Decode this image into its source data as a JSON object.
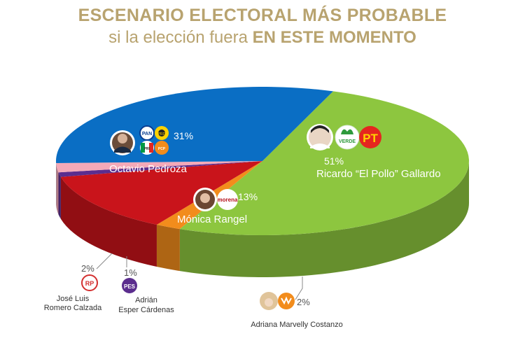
{
  "header": {
    "title_line1": "ESCENARIO ELECTORAL MÁS PROBABLE",
    "title_line2_plain": "si la elección fuera",
    "title_line2_bold": "EN ESTE MOMENTO"
  },
  "chart_data": {
    "type": "pie",
    "style": "3d",
    "slices": [
      {
        "candidate": "Ricardo “El Pollo” Gallardo",
        "value": 51,
        "label": "51%",
        "color": "#8dc63f",
        "parties": [
          "VERDE",
          "PT"
        ]
      },
      {
        "candidate": "Adriana Marvelly Costanzo",
        "value": 2,
        "label": "2%",
        "color": "#f28c1c",
        "parties": [
          "MC"
        ]
      },
      {
        "candidate": "Mónica Rangel",
        "value": 13,
        "label": "13%",
        "color": "#c9141b",
        "parties": [
          "morena"
        ]
      },
      {
        "candidate": "Adrián Esper Cárdenas",
        "value": 1,
        "label": "1%",
        "color": "#5b2d8e",
        "parties": [
          "PES"
        ]
      },
      {
        "candidate": "José Luis Romero Calzada",
        "value": 2,
        "label": "2%",
        "color": "#f4a9b8",
        "parties": [
          "RP"
        ]
      },
      {
        "candidate": "Octavio Pedroza",
        "value": 31,
        "label": "31%",
        "color": "#0a6ec4",
        "parties": [
          "PAN",
          "PRD",
          "PRI",
          "PCP"
        ]
      }
    ],
    "labels": {
      "gallardo": {
        "pct": "51%",
        "name": "Ricardo “El Pollo” Gallardo"
      },
      "pedroza": {
        "pct": "31%",
        "name": "Octavio Pedroza"
      },
      "rangel": {
        "pct": "13%",
        "name": "Mónica Rangel"
      },
      "romero": {
        "pct": "2%",
        "name_line1": "José Luis",
        "name_line2": "Romero Calzada"
      },
      "esper": {
        "pct": "1%",
        "name_line1": "Adrián",
        "name_line2": "Esper Cárdenas"
      },
      "costanzo": {
        "pct": "2%",
        "name": "Adriana Marvelly Costanzo"
      }
    }
  },
  "logos": {
    "pan": "PAN",
    "prd": "PRD",
    "pri": "PRI",
    "pcp": "PCP",
    "verde": "VERDE",
    "pt": "PT",
    "morena": "morena",
    "rp": "RP",
    "pes": "PES",
    "mc": "MC"
  },
  "colors": {
    "title": "#b8a36f",
    "green": "#8dc63f",
    "blue": "#0a6ec4",
    "red": "#c9141b",
    "orange": "#f28c1c",
    "pink": "#f4a9b8",
    "purple": "#5b2d8e"
  }
}
